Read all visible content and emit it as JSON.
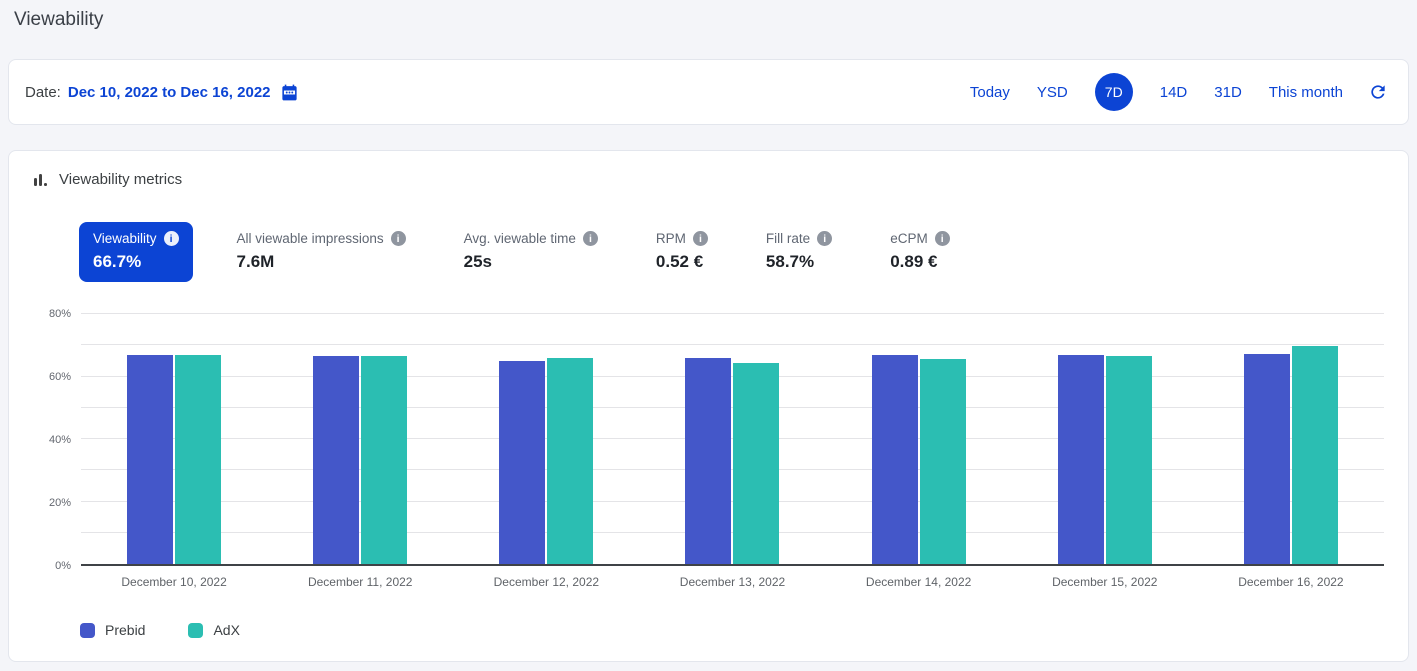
{
  "page": {
    "title": "Viewability"
  },
  "colors": {
    "accent": "#0c44d4",
    "prebid": "#4457c9",
    "adx": "#2bbeb2",
    "gridline": "#e4e4e7",
    "axis_line": "#3f4347",
    "tab_selected_bg": "#0c44d4"
  },
  "date_bar": {
    "label": "Date:",
    "range": "Dec 10, 2022 to Dec 16, 2022",
    "calendar_icon": "calendar-icon",
    "quick_ranges": [
      {
        "label": "Today",
        "selected": false
      },
      {
        "label": "YSD",
        "selected": false
      },
      {
        "label": "7D",
        "selected": true
      },
      {
        "label": "14D",
        "selected": false
      },
      {
        "label": "31D",
        "selected": false
      },
      {
        "label": "This month",
        "selected": false
      }
    ],
    "refresh_icon": "refresh-icon"
  },
  "panel": {
    "title": "Viewability metrics",
    "header_icon": "bar-chart-icon",
    "metrics": [
      {
        "label": "Viewability",
        "value": "66.7%",
        "selected": true,
        "info_icon": "info-icon"
      },
      {
        "label": "All viewable impressions",
        "value": "7.6M",
        "selected": false,
        "info_icon": "info-icon"
      },
      {
        "label": "Avg. viewable time",
        "value": "25s",
        "selected": false,
        "info_icon": "info-icon"
      },
      {
        "label": "RPM",
        "value": "0.52 €",
        "selected": false,
        "info_icon": "info-icon"
      },
      {
        "label": "Fill rate",
        "value": "58.7%",
        "selected": false,
        "info_icon": "info-icon"
      },
      {
        "label": "eCPM",
        "value": "0.89 €",
        "selected": false,
        "info_icon": "info-icon"
      }
    ]
  },
  "chart_data": {
    "type": "bar",
    "title": "Viewability metrics",
    "categories": [
      "December 10, 2022",
      "December 11, 2022",
      "December 12, 2022",
      "December 13, 2022",
      "December 14, 2022",
      "December 15, 2022",
      "December 16, 2022"
    ],
    "series": [
      {
        "name": "Prebid",
        "color": "#4457c9",
        "values": [
          66.8,
          66.5,
          64.9,
          65.9,
          66.8,
          67.0,
          67.1
        ]
      },
      {
        "name": "AdX",
        "color": "#2bbeb2",
        "values": [
          67.0,
          66.5,
          66.0,
          64.2,
          65.6,
          66.5,
          69.8
        ]
      }
    ],
    "xlabel": "",
    "ylabel": "",
    "ylim": [
      0,
      80
    ],
    "y_unit": "%",
    "y_tick_labels": [
      "0%",
      "20%",
      "40%",
      "60%",
      "80%"
    ],
    "y_tick_values": [
      0,
      20,
      40,
      60,
      80
    ],
    "minor_grid_step": 10,
    "grid": "horizontal",
    "legend_position": "bottom"
  }
}
